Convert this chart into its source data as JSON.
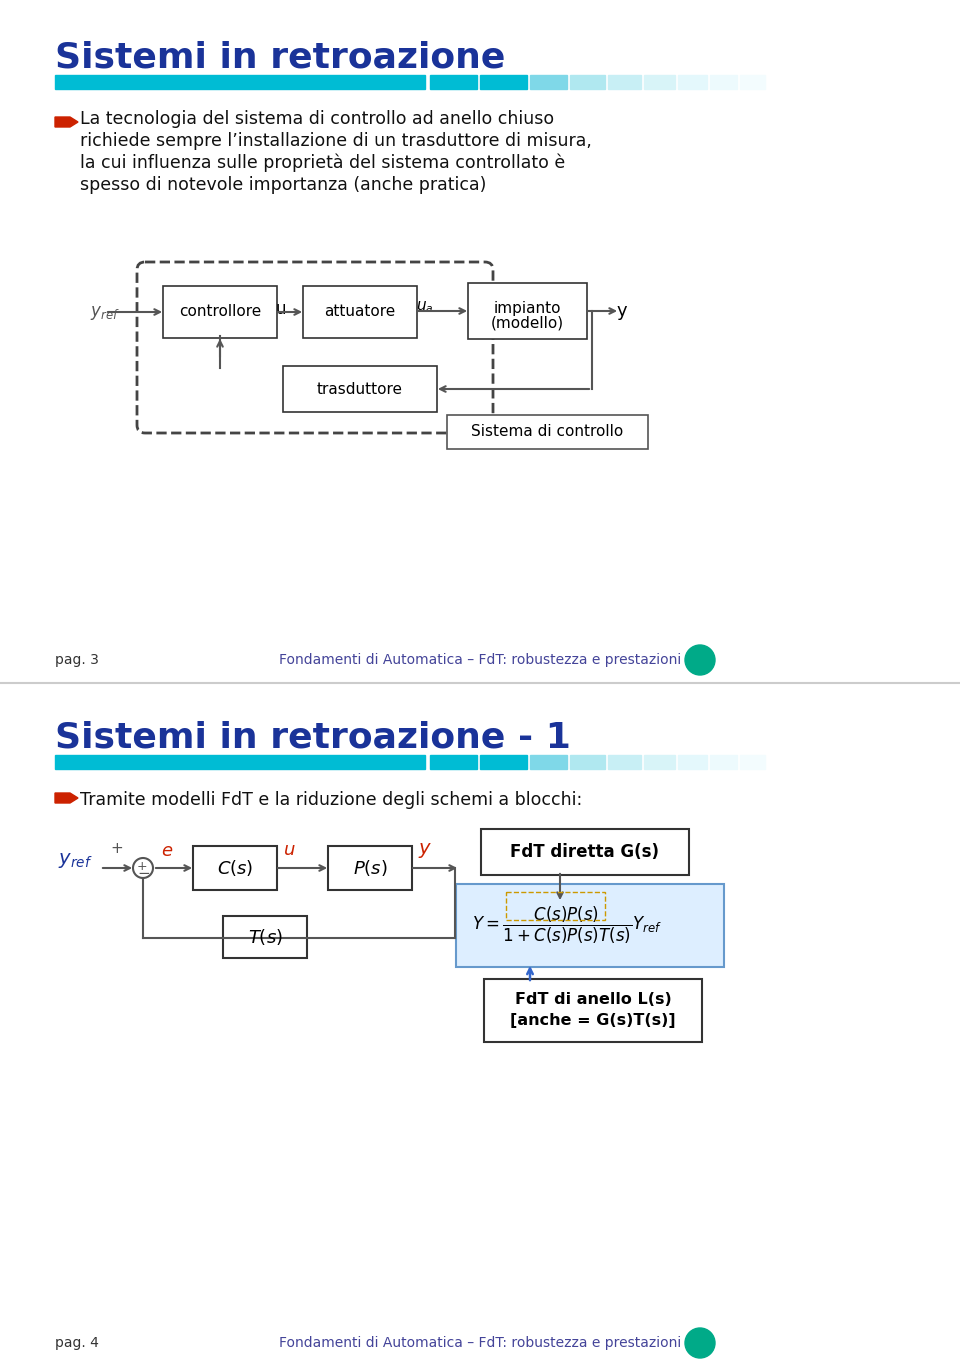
{
  "slide1": {
    "title": "Sistemi in retroazione",
    "title_color": "#1a3399",
    "bullet_text": "La tecnologia del sistema di controllo ad anello chiuso\nrichiede sempre l’installazione di un trasduttore di misura,\nla cui influenza sulle proprietà del sistema controllato è\nspesso di notevole importanza (anche pratica)",
    "footer_left": "pag. 3",
    "footer_right": "Fondamenti di Automatica – FdT: robustezza e prestazioni"
  },
  "slide2": {
    "title": "Sistemi in retroazione - 1",
    "title_color": "#1a3399",
    "bullet_text": "Tramite modelli FdT e la riduzione degli schemi a blocchi:",
    "footer_left": "pag. 4",
    "footer_right": "Fondamenti di Automatica – FdT: robustezza e prestazioni"
  },
  "bar_color_solid": "#00bcd4",
  "bar_color_medium": "#29b6d4",
  "background_color": "#ffffff",
  "text_color": "#000000",
  "bullet_arrow_color": "#cc0000",
  "divider_color": "#dddddd"
}
